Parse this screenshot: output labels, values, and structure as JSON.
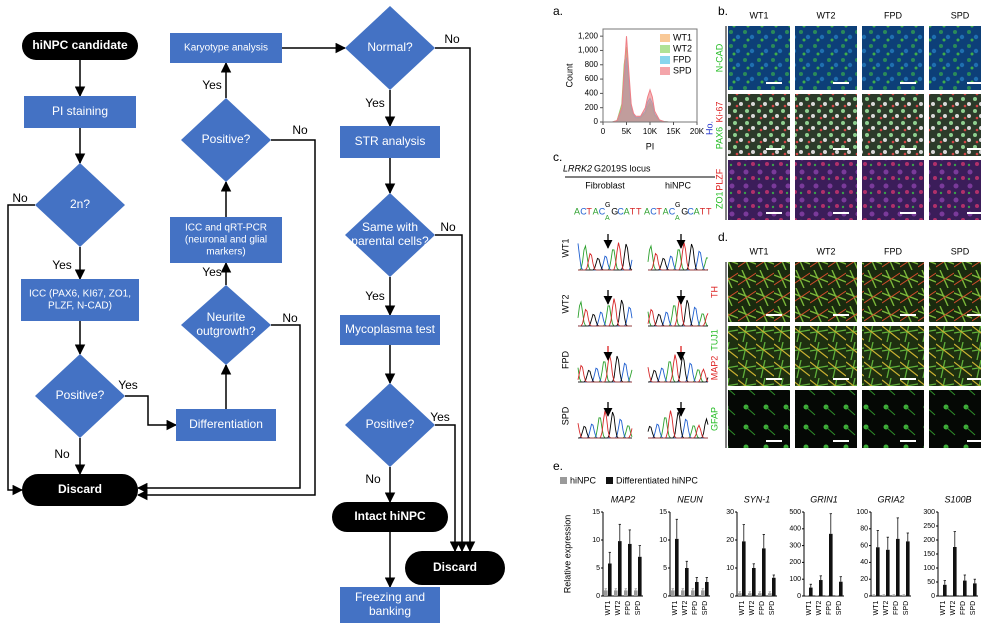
{
  "flowchart": {
    "nodes": [
      {
        "lines": [
          "hiNPC candidate"
        ]
      },
      {
        "lines": [
          "PI staining"
        ]
      },
      {
        "lines": [
          "2n?"
        ]
      },
      {
        "lines": [
          "ICC (PAX6, KI67, ZO1,",
          "PLZF, N-CAD)"
        ]
      },
      {
        "lines": [
          "Positive?"
        ]
      },
      {
        "lines": [
          "Discard"
        ]
      },
      {
        "lines": [
          "Differentiation"
        ]
      },
      {
        "lines": [
          "Neurite",
          "outgrowth?"
        ]
      },
      {
        "lines": [
          "ICC and qRT-PCR",
          "(neuronal and glial",
          "markers)"
        ]
      },
      {
        "lines": [
          "Positive?"
        ]
      },
      {
        "lines": [
          "Karyotype analysis"
        ]
      },
      {
        "lines": [
          "Normal?"
        ]
      },
      {
        "lines": [
          "STR analysis"
        ]
      },
      {
        "lines": [
          "Same with",
          "parental cells?"
        ]
      },
      {
        "lines": [
          "Mycoplasma test"
        ]
      },
      {
        "lines": [
          "Positive?"
        ]
      },
      {
        "lines": [
          "Intact hiNPC"
        ]
      },
      {
        "lines": [
          "Freezing and",
          "banking"
        ]
      },
      {
        "lines": [
          "Discard"
        ]
      }
    ],
    "edge_labels": [
      "No",
      "Yes",
      "Yes",
      "No",
      "Yes",
      "Yes",
      "No",
      "No",
      "No",
      "Yes",
      "No",
      "Yes",
      "Yes",
      "No"
    ]
  },
  "panel_labels": [
    "a.",
    "b.",
    "c.",
    "d.",
    "e."
  ],
  "histogram": {
    "type": "area",
    "xlabel": "PI",
    "ylabel": "Count",
    "xlim": [
      0,
      20000
    ],
    "xticks": [
      0,
      {
        "value": 5000,
        "label": "5K"
      },
      {
        "value": 10000,
        "label": "10K"
      },
      {
        "value": 15000,
        "label": "15K"
      },
      {
        "value": 20000,
        "label": "20K"
      }
    ],
    "ylim": [
      0,
      1300
    ],
    "yticks": [
      0,
      200,
      400,
      600,
      800,
      {
        "value": 1000,
        "label": "1,000"
      },
      {
        "value": 1200,
        "label": "1,200"
      }
    ],
    "x": [
      2000,
      3000,
      4000,
      4500,
      5000,
      5500,
      6000,
      6500,
      7000,
      8000,
      9000,
      9500,
      10000,
      10500,
      11000,
      12000,
      13000,
      14000
    ],
    "series": [
      {
        "name": "WT1",
        "color": "#f6b26b",
        "values": [
          0,
          10,
          150,
          500,
          800,
          500,
          180,
          90,
          50,
          50,
          120,
          220,
          280,
          220,
          90,
          20,
          5,
          0
        ]
      },
      {
        "name": "WT2",
        "color": "#8fd66a",
        "values": [
          0,
          20,
          250,
          800,
          1050,
          600,
          220,
          100,
          60,
          60,
          120,
          200,
          250,
          200,
          90,
          20,
          5,
          0
        ]
      },
      {
        "name": "FPD",
        "color": "#55c4e6",
        "values": [
          0,
          15,
          180,
          600,
          900,
          550,
          200,
          100,
          60,
          70,
          150,
          280,
          330,
          260,
          110,
          25,
          5,
          0
        ]
      },
      {
        "name": "SPD",
        "color": "#ef7f86",
        "values": [
          0,
          20,
          200,
          700,
          1200,
          700,
          250,
          120,
          80,
          80,
          200,
          350,
          450,
          350,
          150,
          30,
          5,
          0
        ]
      }
    ]
  },
  "micrographs_b": {
    "columns": [
      "WT1",
      "WT2",
      "FPD",
      "SPD"
    ],
    "counterstain": {
      "text": "Ho.",
      "color": "#2233cc"
    },
    "rows": [
      [
        {
          "text": "N-CAD",
          "color": "#22bb22"
        }
      ],
      [
        {
          "text": "PAX6",
          "color": "#22bb22"
        },
        {
          "text": "Ki-67",
          "color": "#dd2222"
        }
      ],
      [
        {
          "text": "ZO1",
          "color": "#22bb22"
        },
        {
          "text": "PLZF",
          "color": "#dd2222"
        }
      ]
    ]
  },
  "chromatogram": {
    "gene": "LRRK2",
    "locus": "G2019S locus",
    "columns": [
      "Fibroblast",
      "hiNPC"
    ],
    "letters": [
      "A",
      "C",
      "T",
      "A",
      "C",
      "G",
      "A",
      "G",
      "C",
      "A",
      "T",
      "T"
    ],
    "rows": [
      {
        "label": "WT1",
        "arrow": "#000000"
      },
      {
        "label": "WT2",
        "arrow": "#000000"
      },
      {
        "label": "FPD",
        "arrow": "#dd2222"
      },
      {
        "label": "SPD",
        "arrow": "#000000"
      }
    ]
  },
  "micrographs_d": {
    "columns": [
      "WT1",
      "WT2",
      "FPD",
      "SPD"
    ],
    "labels": [
      {
        "text": "TH",
        "color": "#dd2222"
      },
      {
        "text": "TUJ1",
        "color": "#22bb22"
      },
      {
        "text": "MAP2",
        "color": "#dd2222"
      },
      {
        "text": "GFAP",
        "color": "#22bb22"
      }
    ]
  },
  "bar_charts": {
    "type": "bar",
    "ylabel": "Relative expression",
    "categories": [
      "WT1",
      "WT2",
      "FPD",
      "SPD"
    ],
    "series": [
      {
        "name": "hiNPC",
        "color": "#9a9a9a"
      },
      {
        "name": "Differentiated hiNPC",
        "color": "#111111"
      }
    ],
    "charts": [
      {
        "title": "MAP2",
        "ylim": [
          0,
          15
        ],
        "yticks": [
          0,
          5,
          10,
          15
        ],
        "values": [
          [
            1,
            1,
            1,
            1
          ],
          [
            5.8,
            9.8,
            9.3,
            7.0
          ]
        ],
        "errors": [
          [
            0.3,
            0.3,
            0.3,
            0.3
          ],
          [
            2.0,
            3.0,
            2.5,
            2.0
          ]
        ]
      },
      {
        "title": "NEUN",
        "ylim": [
          0,
          15
        ],
        "yticks": [
          0,
          5,
          10,
          15
        ],
        "values": [
          [
            1,
            1,
            1,
            1
          ],
          [
            10.2,
            5.0,
            2.5,
            2.5
          ]
        ],
        "errors": [
          [
            0.3,
            0.3,
            0.3,
            0.3
          ],
          [
            3.5,
            1.2,
            0.8,
            0.8
          ]
        ]
      },
      {
        "title": "SYN-1",
        "ylim": [
          0,
          30
        ],
        "yticks": [
          0,
          10,
          20,
          30
        ],
        "values": [
          [
            1,
            1,
            1,
            1
          ],
          [
            19.5,
            10,
            17,
            6.5
          ]
        ],
        "errors": [
          [
            0.5,
            0.5,
            0.5,
            0.5
          ],
          [
            6,
            1.5,
            5,
            1
          ]
        ]
      },
      {
        "title": "GRIN1",
        "ylim": [
          0,
          500
        ],
        "yticks": [
          0,
          100,
          200,
          300,
          400,
          500
        ],
        "values": [
          [
            1,
            1,
            1,
            1
          ],
          [
            50,
            95,
            370,
            85
          ]
        ],
        "errors": [
          [
            1,
            1,
            1,
            1
          ],
          [
            20,
            25,
            120,
            30
          ]
        ]
      },
      {
        "title": "GRIA2",
        "ylim": [
          0,
          100
        ],
        "yticks": [
          0,
          20,
          40,
          60,
          80,
          100
        ],
        "values": [
          [
            1,
            1,
            1,
            1
          ],
          [
            58,
            55,
            68,
            65
          ]
        ],
        "errors": [
          [
            0.5,
            0.5,
            0.5,
            0.5
          ],
          [
            20,
            15,
            25,
            10
          ]
        ]
      },
      {
        "title": "S100B",
        "ylim": [
          0,
          300
        ],
        "yticks": [
          0,
          50,
          100,
          150,
          200,
          250,
          300
        ],
        "values": [
          [
            1,
            1,
            1,
            1
          ],
          [
            40,
            175,
            55,
            45
          ]
        ],
        "errors": [
          [
            1,
            1,
            1,
            1
          ],
          [
            15,
            55,
            20,
            15
          ]
        ]
      }
    ]
  }
}
